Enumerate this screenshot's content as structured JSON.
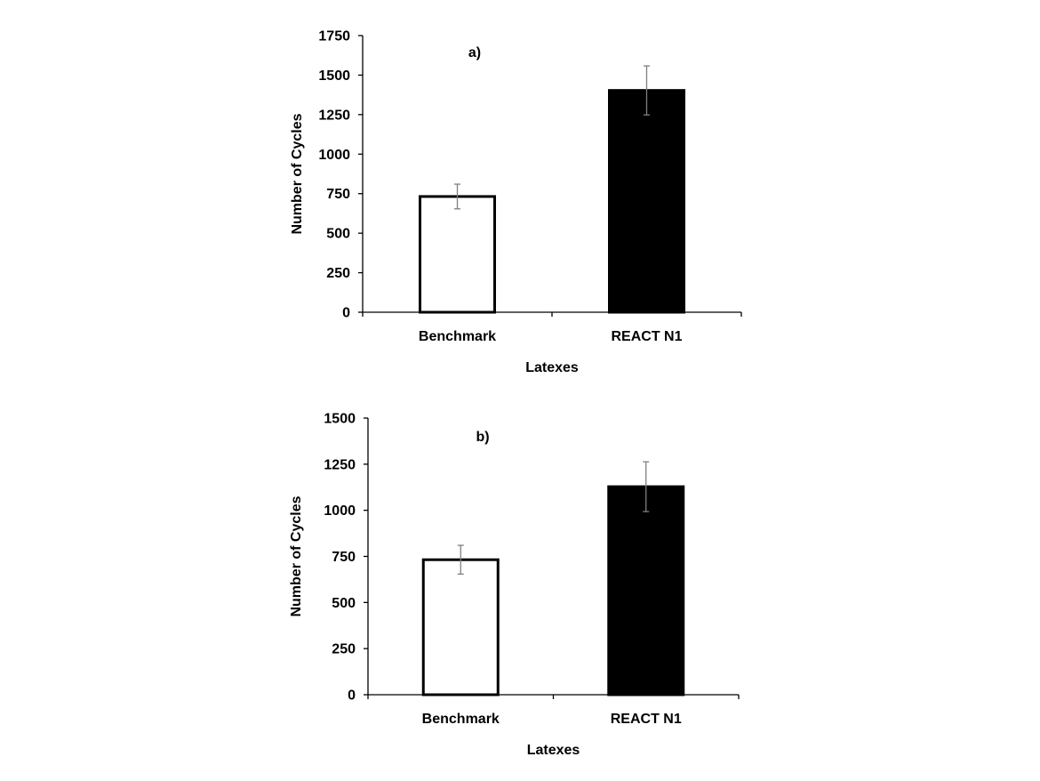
{
  "chart_data": [
    {
      "type": "bar",
      "panel_label": "a)",
      "categories": [
        "Benchmark",
        "REACT N1"
      ],
      "series": [
        {
          "values": [
            732,
            1403
          ],
          "errors": [
            78,
            155
          ],
          "fills": [
            "#ffffff",
            "#000000"
          ]
        }
      ],
      "xlabel": "Latexes",
      "ylabel": "Number of Cycles",
      "ylim": [
        0,
        1750
      ],
      "yticks": [
        0,
        250,
        500,
        750,
        1000,
        1250,
        1500,
        1750
      ],
      "grid": false,
      "legend": "none"
    },
    {
      "type": "bar",
      "panel_label": "b)",
      "categories": [
        "Benchmark",
        "REACT N1"
      ],
      "series": [
        {
          "values": [
            732,
            1128
          ],
          "errors": [
            78,
            135
          ],
          "fills": [
            "#ffffff",
            "#000000"
          ]
        }
      ],
      "xlabel": "Latexes",
      "ylabel": "Number of Cycles",
      "ylim": [
        0,
        1500
      ],
      "yticks": [
        0,
        250,
        500,
        750,
        1000,
        1250,
        1500
      ],
      "grid": false,
      "legend": "none"
    }
  ],
  "colors": {
    "axis": "#000000",
    "bar_outline": "#000000",
    "error_bar": "#7f7f7f"
  }
}
